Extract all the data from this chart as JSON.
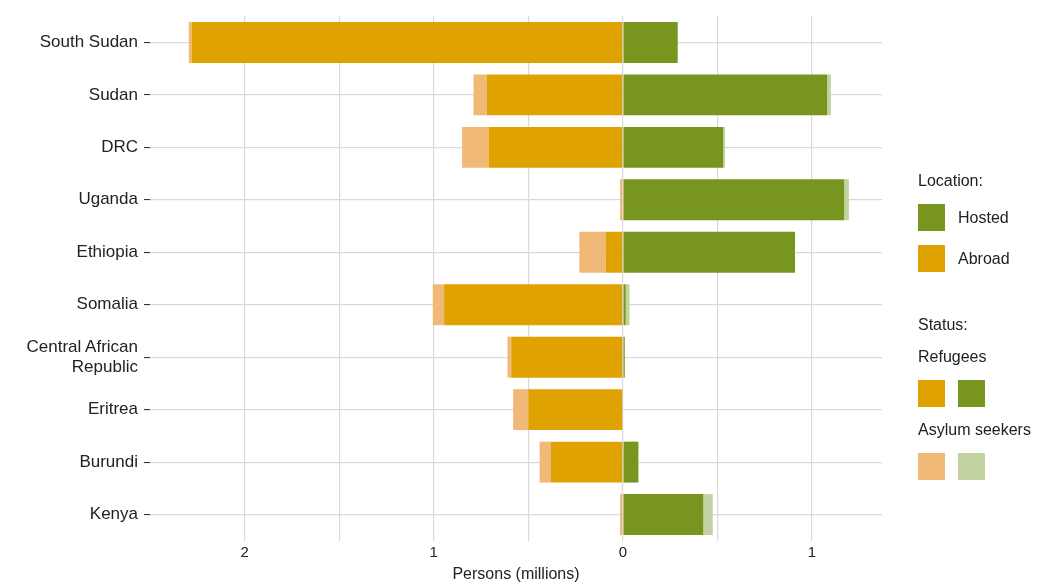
{
  "chart_data": {
    "type": "bar",
    "orientation": "horizontal",
    "stacked": true,
    "xlabel": "Persons (millions)",
    "categories": [
      "South Sudan",
      "Sudan",
      "DRC",
      "Uganda",
      "Ethiopia",
      "Somalia",
      "Central African Republic",
      "Eritrea",
      "Burundi",
      "Kenya"
    ],
    "series": [
      {
        "color": "#dfa200",
        "values": [
          -2.28,
          -0.72,
          -0.71,
          0,
          -0.09,
          -0.945,
          -0.59,
          -0.5,
          -0.38,
          0
        ]
      },
      {
        "color": "#f0b978",
        "values": [
          -0.015,
          -0.07,
          -0.14,
          -0.015,
          -0.14,
          -0.06,
          -0.02,
          -0.08,
          -0.06,
          -0.015
        ]
      },
      {
        "color": "#78951f",
        "values": [
          0.29,
          1.08,
          0.53,
          1.17,
          0.91,
          0.015,
          0.01,
          0,
          0.08,
          0.425
        ]
      },
      {
        "color": "#c3d2a1",
        "values": [
          0,
          0.02,
          0.01,
          0.025,
          0,
          0.02,
          0,
          0,
          0.005,
          0.05
        ]
      }
    ],
    "xlim": [
      -2.5,
      1.37
    ],
    "xticks": [
      {
        "value": -2,
        "label": "2"
      },
      {
        "value": -1.5,
        "label": null
      },
      {
        "value": -1,
        "label": "1"
      },
      {
        "value": -0.5,
        "label": null
      },
      {
        "value": 0,
        "label": "0"
      },
      {
        "value": 0.5,
        "label": null
      },
      {
        "value": 1,
        "label": "1"
      }
    ],
    "grid": true,
    "legend_title": "Status:",
    "annotations": [
      "Location:",
      "Hosted",
      "Abroad",
      "Refugees",
      "Asylum seekers"
    ]
  }
}
